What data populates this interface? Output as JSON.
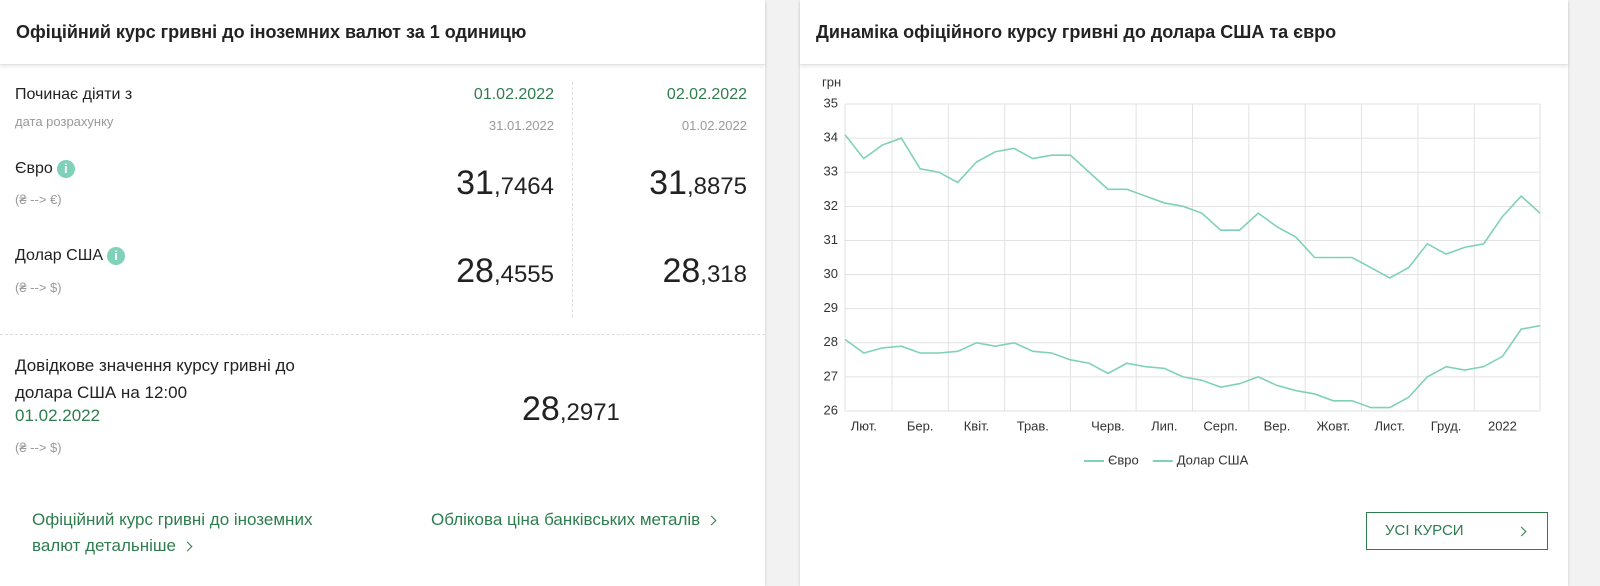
{
  "left": {
    "title": "Офіційний курс гривні до іноземних валют за 1 одиницю",
    "starts_label": "Починає діяти з",
    "calc_label": "дата розрахунку",
    "currencies": [
      {
        "name": "Євро",
        "code": "(₴ --> €)"
      },
      {
        "name": "Долар США",
        "code": "(₴ --> $)"
      }
    ],
    "columns": [
      {
        "date": "01.02.2022",
        "calc_date": "31.01.2022",
        "eur_int": "31",
        "eur_frac": ",7464",
        "usd_int": "28",
        "usd_frac": ",4555"
      },
      {
        "date": "02.02.2022",
        "calc_date": "01.02.2022",
        "eur_int": "31",
        "eur_frac": ",8875",
        "usd_int": "28",
        "usd_frac": ",318"
      }
    ],
    "reference": {
      "text": "Довідкове значення курсу гривні до долара США на 12:00",
      "date": "01.02.2022",
      "code": "(₴ --> $)",
      "int": "28",
      "frac": ",2971"
    },
    "links": [
      "Офіційний курс гривні до іноземних валют детальніше",
      "Облікова ціна банківських металів"
    ]
  },
  "right": {
    "title": "Динаміка офіційного курсу гривні до долара США та євро",
    "button": "УСІ КУРСИ"
  },
  "chart_data": {
    "type": "line",
    "y_label": "грн",
    "categories": [
      null,
      "Лют.",
      null,
      null,
      "Бер.",
      null,
      null,
      "Квіт.",
      null,
      null,
      "Трав.",
      null,
      null,
      null,
      "Черв.",
      null,
      null,
      "Лип.",
      null,
      null,
      "Серп.",
      null,
      null,
      "Вер.",
      null,
      null,
      "Жовт.",
      null,
      null,
      "Лист.",
      null,
      null,
      "Груд.",
      null,
      null,
      "2022",
      null,
      null
    ],
    "series": [
      {
        "name": "Євро",
        "color": "#7fd1b9",
        "values": [
          34.1,
          33.4,
          33.8,
          34.0,
          33.1,
          33.0,
          32.7,
          33.3,
          33.6,
          33.7,
          33.4,
          33.5,
          33.5,
          33.0,
          32.5,
          32.5,
          32.3,
          32.1,
          32.0,
          31.8,
          31.3,
          31.3,
          31.8,
          31.4,
          31.1,
          30.5,
          30.5,
          30.5,
          30.2,
          29.9,
          30.2,
          30.9,
          30.6,
          30.8,
          30.9,
          31.7,
          32.3,
          31.8
        ]
      },
      {
        "name": "Долар США",
        "color": "#7fd1b9",
        "values": [
          28.1,
          27.7,
          27.85,
          27.9,
          27.7,
          27.7,
          27.75,
          28.0,
          27.9,
          28.0,
          27.75,
          27.7,
          27.5,
          27.4,
          27.1,
          27.4,
          27.3,
          27.25,
          27.0,
          26.9,
          26.7,
          26.8,
          27.0,
          26.75,
          26.6,
          26.5,
          26.3,
          26.3,
          26.1,
          26.1,
          26.4,
          27.0,
          27.3,
          27.2,
          27.3,
          27.6,
          28.4,
          28.5
        ]
      }
    ],
    "ylim": [
      26,
      35
    ],
    "yticks": [
      26,
      27,
      28,
      29,
      30,
      31,
      32,
      33,
      34,
      35
    ],
    "grid": true,
    "legend": "bottom"
  }
}
